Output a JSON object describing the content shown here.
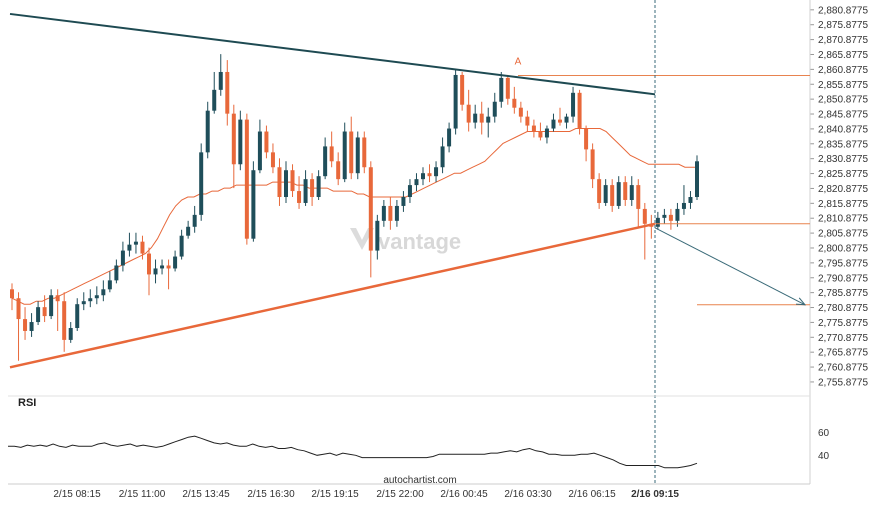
{
  "chart_data": {
    "type": "candlestick",
    "price_axis_ticks": [
      "2,880.8775",
      "2,875.8775",
      "2,870.8775",
      "2,865.8775",
      "2,860.8775",
      "2,855.8775",
      "2,850.8775",
      "2,845.8775",
      "2,840.8775",
      "2,835.8775",
      "2,830.8775",
      "2,825.8775",
      "2,820.8775",
      "2,815.8775",
      "2,810.8775",
      "2,805.8775",
      "2,800.8775",
      "2,795.8775",
      "2,790.8775",
      "2,785.8775",
      "2,780.8775",
      "2,775.8775",
      "2,770.8775",
      "2,765.8775",
      "2,760.8775",
      "2,755.8775"
    ],
    "ylim": [
      2752.5,
      2882.5
    ],
    "x_ticks": [
      "2/15 08:15",
      "2/15 11:00",
      "2/15 13:45",
      "2/15 16:30",
      "2/15 19:15",
      "2/15 22:00",
      "2/16 00:45",
      "2/16 03:30",
      "2/16 06:15",
      "2/16 09:15"
    ],
    "highlight_x_tick": "2/16 09:15",
    "pattern_label": "A",
    "rsi_label": "RSI",
    "rsi_ticks": [
      "60",
      "40"
    ],
    "watermark": "vantage",
    "footer": "autochartist.com",
    "colors": {
      "up": "#1f4e5a",
      "down": "#e8683a",
      "resistance": "#1e4a52",
      "support": "#e8683a",
      "level": "#e8834f",
      "forecast": "#3a6a78",
      "rsi": "#222222"
    },
    "resistance_line": {
      "from_price": 2879.5,
      "to_price": 2852.5
    },
    "support_line": {
      "from_price": 2760.8,
      "to_price": 2809.0
    },
    "horizontal_levels": [
      2858.8,
      2809.0,
      2781.8
    ],
    "forecast_target": 2781.8,
    "moving_average": [
      2784,
      2783,
      2782,
      2782,
      2783,
      2783,
      2784,
      2784,
      2785,
      2786,
      2787,
      2788,
      2789,
      2790,
      2791,
      2792,
      2793,
      2794,
      2795,
      2796,
      2797,
      2798,
      2799,
      2801,
      2804,
      2808,
      2812,
      2815,
      2817,
      2818,
      2818,
      2819,
      2819,
      2820,
      2820,
      2821,
      2821,
      2822,
      2822,
      2822,
      2822,
      2822,
      2822,
      2823,
      2823,
      2823,
      2823,
      2822,
      2822,
      2821,
      2821,
      2821,
      2821,
      2820,
      2820,
      2820,
      2820,
      2819,
      2819,
      2818,
      2818,
      2818,
      2818,
      2818,
      2818,
      2818,
      2819,
      2820,
      2821,
      2822,
      2823,
      2824,
      2825,
      2826,
      2826,
      2827,
      2828,
      2829,
      2830,
      2832,
      2834,
      2836,
      2837,
      2838,
      2839,
      2840,
      2840,
      2840,
      2840,
      2840,
      2840,
      2840,
      2840,
      2841,
      2841,
      2841,
      2841,
      2841,
      2840,
      2838,
      2836,
      2834,
      2832,
      2831,
      2830,
      2829,
      2829,
      2829,
      2829,
      2829,
      2829,
      2828,
      2828,
      2828
    ],
    "rsi_values": [
      48,
      48,
      47,
      49,
      48,
      49,
      48,
      50,
      48,
      47,
      49,
      48,
      48,
      48,
      50,
      51,
      49,
      48,
      49,
      50,
      48,
      49,
      48,
      47,
      48,
      50,
      52,
      54,
      56,
      57,
      55,
      53,
      51,
      50,
      51,
      49,
      48,
      48,
      50,
      48,
      47,
      48,
      46,
      46,
      47,
      45,
      44,
      42,
      40,
      41,
      42,
      40,
      42,
      41,
      40,
      38,
      38,
      38,
      38,
      38,
      38,
      38,
      38,
      38,
      38,
      38,
      39,
      41,
      41,
      41,
      41,
      41,
      41,
      41,
      41,
      42,
      42,
      43,
      44,
      43,
      45,
      46,
      44,
      43,
      41,
      41,
      40,
      40,
      40,
      41,
      41,
      42,
      40,
      38,
      36,
      33,
      31,
      31,
      31,
      31,
      31,
      31,
      29,
      29,
      29,
      30,
      31,
      33
    ],
    "candles": [
      {
        "o": 2787.0,
        "h": 2789.0,
        "c": 2784.0,
        "l": 2780.0
      },
      {
        "o": 2784.0,
        "h": 2786.0,
        "c": 2777.0,
        "l": 2763.0
      },
      {
        "o": 2777.0,
        "h": 2781.0,
        "c": 2773.0,
        "l": 2770.0
      },
      {
        "o": 2773.0,
        "h": 2779.0,
        "c": 2776.0,
        "l": 2771.0
      },
      {
        "o": 2776.0,
        "h": 2783.0,
        "c": 2781.0,
        "l": 2775.0
      },
      {
        "o": 2781.0,
        "h": 2785.0,
        "c": 2778.0,
        "l": 2776.0
      },
      {
        "o": 2778.0,
        "h": 2787.0,
        "c": 2785.0,
        "l": 2777.0
      },
      {
        "o": 2785.0,
        "h": 2787.0,
        "c": 2783.0,
        "l": 2773.0
      },
      {
        "o": 2783.0,
        "h": 2786.0,
        "c": 2770.0,
        "l": 2766.0
      },
      {
        "o": 2770.0,
        "h": 2776.0,
        "c": 2774.0,
        "l": 2769.0
      },
      {
        "o": 2774.0,
        "h": 2784.0,
        "c": 2782.0,
        "l": 2773.0
      },
      {
        "o": 2782.0,
        "h": 2786.0,
        "c": 2783.0,
        "l": 2780.0
      },
      {
        "o": 2783.0,
        "h": 2787.0,
        "c": 2784.0,
        "l": 2781.0
      },
      {
        "o": 2784.0,
        "h": 2788.0,
        "c": 2785.0,
        "l": 2782.0
      },
      {
        "o": 2785.0,
        "h": 2790.0,
        "c": 2787.0,
        "l": 2783.0
      },
      {
        "o": 2787.0,
        "h": 2793.0,
        "c": 2790.0,
        "l": 2786.0
      },
      {
        "o": 2790.0,
        "h": 2797.0,
        "c": 2795.0,
        "l": 2789.0
      },
      {
        "o": 2795.0,
        "h": 2803.0,
        "c": 2800.0,
        "l": 2793.0
      },
      {
        "o": 2800.0,
        "h": 2806.0,
        "c": 2802.0,
        "l": 2798.0
      },
      {
        "o": 2802.0,
        "h": 2806.0,
        "c": 2803.0,
        "l": 2799.0
      },
      {
        "o": 2803.0,
        "h": 2805.0,
        "c": 2799.0,
        "l": 2797.0
      },
      {
        "o": 2799.0,
        "h": 2801.0,
        "c": 2792.0,
        "l": 2785.0
      },
      {
        "o": 2792.0,
        "h": 2797.0,
        "c": 2794.0,
        "l": 2789.0
      },
      {
        "o": 2794.0,
        "h": 2797.0,
        "c": 2795.0,
        "l": 2792.0
      },
      {
        "o": 2795.0,
        "h": 2797.0,
        "c": 2794.0,
        "l": 2787.0
      },
      {
        "o": 2794.0,
        "h": 2800.0,
        "c": 2798.0,
        "l": 2793.0
      },
      {
        "o": 2798.0,
        "h": 2807.0,
        "c": 2805.0,
        "l": 2797.0
      },
      {
        "o": 2805.0,
        "h": 2810.0,
        "c": 2808.0,
        "l": 2804.0
      },
      {
        "o": 2808.0,
        "h": 2815.0,
        "c": 2812.0,
        "l": 2806.0
      },
      {
        "o": 2812.0,
        "h": 2836.0,
        "c": 2833.0,
        "l": 2810.0
      },
      {
        "o": 2833.0,
        "h": 2850.0,
        "c": 2847.0,
        "l": 2831.0
      },
      {
        "o": 2847.0,
        "h": 2860.0,
        "c": 2854.0,
        "l": 2846.0
      },
      {
        "o": 2854.0,
        "h": 2866.0,
        "c": 2860.0,
        "l": 2852.0
      },
      {
        "o": 2860.0,
        "h": 2864.0,
        "c": 2846.0,
        "l": 2842.0
      },
      {
        "o": 2846.0,
        "h": 2849.0,
        "c": 2829.0,
        "l": 2821.0
      },
      {
        "o": 2829.0,
        "h": 2847.0,
        "c": 2844.0,
        "l": 2827.0
      },
      {
        "o": 2844.0,
        "h": 2846.0,
        "c": 2804.0,
        "l": 2802.0
      },
      {
        "o": 2804.0,
        "h": 2830.0,
        "c": 2827.0,
        "l": 2803.0
      },
      {
        "o": 2827.0,
        "h": 2844.0,
        "c": 2840.0,
        "l": 2826.0
      },
      {
        "o": 2840.0,
        "h": 2842.0,
        "c": 2833.0,
        "l": 2831.0
      },
      {
        "o": 2833.0,
        "h": 2836.0,
        "c": 2828.0,
        "l": 2826.0
      },
      {
        "o": 2828.0,
        "h": 2831.0,
        "c": 2818.0,
        "l": 2815.0
      },
      {
        "o": 2818.0,
        "h": 2830.0,
        "c": 2827.0,
        "l": 2816.0
      },
      {
        "o": 2827.0,
        "h": 2829.0,
        "c": 2820.0,
        "l": 2818.0
      },
      {
        "o": 2820.0,
        "h": 2825.0,
        "c": 2816.0,
        "l": 2814.0
      },
      {
        "o": 2816.0,
        "h": 2827.0,
        "c": 2824.0,
        "l": 2815.0
      },
      {
        "o": 2824.0,
        "h": 2826.0,
        "c": 2818.0,
        "l": 2815.0
      },
      {
        "o": 2818.0,
        "h": 2827.0,
        "c": 2825.0,
        "l": 2817.0
      },
      {
        "o": 2825.0,
        "h": 2838.0,
        "c": 2835.0,
        "l": 2824.0
      },
      {
        "o": 2835.0,
        "h": 2840.0,
        "c": 2830.0,
        "l": 2828.0
      },
      {
        "o": 2830.0,
        "h": 2833.0,
        "c": 2824.0,
        "l": 2822.0
      },
      {
        "o": 2824.0,
        "h": 2843.0,
        "c": 2840.0,
        "l": 2823.0
      },
      {
        "o": 2840.0,
        "h": 2845.0,
        "c": 2826.0,
        "l": 2824.0
      },
      {
        "o": 2826.0,
        "h": 2840.0,
        "c": 2838.0,
        "l": 2824.0
      },
      {
        "o": 2838.0,
        "h": 2840.0,
        "c": 2828.0,
        "l": 2826.0
      },
      {
        "o": 2828.0,
        "h": 2830.0,
        "c": 2800.0,
        "l": 2791.0
      },
      {
        "o": 2800.0,
        "h": 2812.0,
        "c": 2810.0,
        "l": 2797.0
      },
      {
        "o": 2810.0,
        "h": 2817.0,
        "c": 2815.0,
        "l": 2808.0
      },
      {
        "o": 2815.0,
        "h": 2818.0,
        "c": 2810.0,
        "l": 2807.0
      },
      {
        "o": 2810.0,
        "h": 2817.0,
        "c": 2815.0,
        "l": 2808.0
      },
      {
        "o": 2815.0,
        "h": 2820.0,
        "c": 2818.0,
        "l": 2813.0
      },
      {
        "o": 2818.0,
        "h": 2824.0,
        "c": 2822.0,
        "l": 2816.0
      },
      {
        "o": 2822.0,
        "h": 2826.0,
        "c": 2824.0,
        "l": 2820.0
      },
      {
        "o": 2824.0,
        "h": 2828.0,
        "c": 2826.0,
        "l": 2822.0
      },
      {
        "o": 2826.0,
        "h": 2829.0,
        "c": 2825.0,
        "l": 2823.0
      },
      {
        "o": 2825.0,
        "h": 2830.0,
        "c": 2828.0,
        "l": 2823.0
      },
      {
        "o": 2828.0,
        "h": 2838.0,
        "c": 2835.0,
        "l": 2826.0
      },
      {
        "o": 2835.0,
        "h": 2843.0,
        "c": 2841.0,
        "l": 2833.0
      },
      {
        "o": 2841.0,
        "h": 2861.0,
        "c": 2859.0,
        "l": 2839.0
      },
      {
        "o": 2859.0,
        "h": 2860.0,
        "c": 2849.0,
        "l": 2847.0
      },
      {
        "o": 2849.0,
        "h": 2854.0,
        "c": 2843.0,
        "l": 2840.0
      },
      {
        "o": 2843.0,
        "h": 2849.0,
        "c": 2846.0,
        "l": 2841.0
      },
      {
        "o": 2846.0,
        "h": 2850.0,
        "c": 2843.0,
        "l": 2839.0
      },
      {
        "o": 2843.0,
        "h": 2848.0,
        "c": 2845.0,
        "l": 2838.0
      },
      {
        "o": 2845.0,
        "h": 2853.0,
        "c": 2850.0,
        "l": 2843.0
      },
      {
        "o": 2850.0,
        "h": 2860.0,
        "c": 2858.0,
        "l": 2848.0
      },
      {
        "o": 2858.0,
        "h": 2859.0,
        "c": 2851.0,
        "l": 2849.0
      },
      {
        "o": 2851.0,
        "h": 2855.0,
        "c": 2848.0,
        "l": 2846.0
      },
      {
        "o": 2848.0,
        "h": 2850.0,
        "c": 2845.0,
        "l": 2843.0
      },
      {
        "o": 2845.0,
        "h": 2847.0,
        "c": 2842.0,
        "l": 2840.0
      },
      {
        "o": 2842.0,
        "h": 2844.0,
        "c": 2840.0,
        "l": 2838.0
      },
      {
        "o": 2840.0,
        "h": 2843.0,
        "c": 2838.0,
        "l": 2837.0
      },
      {
        "o": 2838.0,
        "h": 2842.0,
        "c": 2841.0,
        "l": 2836.0
      },
      {
        "o": 2841.0,
        "h": 2846.0,
        "c": 2844.0,
        "l": 2840.0
      },
      {
        "o": 2844.0,
        "h": 2848.0,
        "c": 2843.0,
        "l": 2842.0
      },
      {
        "o": 2843.0,
        "h": 2846.0,
        "c": 2845.0,
        "l": 2841.0
      },
      {
        "o": 2845.0,
        "h": 2855.0,
        "c": 2853.0,
        "l": 2843.0
      },
      {
        "o": 2853.0,
        "h": 2854.0,
        "c": 2841.0,
        "l": 2839.0
      },
      {
        "o": 2841.0,
        "h": 2842.0,
        "c": 2834.0,
        "l": 2830.0
      },
      {
        "o": 2834.0,
        "h": 2836.0,
        "c": 2824.0,
        "l": 2821.0
      },
      {
        "o": 2824.0,
        "h": 2826.0,
        "c": 2816.0,
        "l": 2814.0
      },
      {
        "o": 2816.0,
        "h": 2824.0,
        "c": 2822.0,
        "l": 2815.0
      },
      {
        "o": 2822.0,
        "h": 2824.0,
        "c": 2815.0,
        "l": 2813.0
      },
      {
        "o": 2815.0,
        "h": 2825.0,
        "c": 2823.0,
        "l": 2814.0
      },
      {
        "o": 2823.0,
        "h": 2825.0,
        "c": 2817.0,
        "l": 2815.0
      },
      {
        "o": 2817.0,
        "h": 2825.0,
        "c": 2822.0,
        "l": 2815.0
      },
      {
        "o": 2822.0,
        "h": 2824.0,
        "c": 2814.0,
        "l": 2808.0
      },
      {
        "o": 2814.0,
        "h": 2816.0,
        "c": 2809.0,
        "l": 2797.0
      },
      {
        "o": 2809.0,
        "h": 2812.0,
        "c": 2808.0,
        "l": 2804.0
      },
      {
        "o": 2808.0,
        "h": 2813.0,
        "c": 2811.0,
        "l": 2807.0
      },
      {
        "o": 2811.0,
        "h": 2814.0,
        "c": 2812.0,
        "l": 2809.0
      },
      {
        "o": 2812.0,
        "h": 2814.0,
        "c": 2810.0,
        "l": 2807.0
      },
      {
        "o": 2810.0,
        "h": 2816.0,
        "c": 2814.0,
        "l": 2808.0
      },
      {
        "o": 2814.0,
        "h": 2822.0,
        "c": 2816.0,
        "l": 2812.0
      },
      {
        "o": 2816.0,
        "h": 2820.0,
        "c": 2818.0,
        "l": 2814.0
      },
      {
        "o": 2818.0,
        "h": 2832.0,
        "c": 2830.0,
        "l": 2817.0
      }
    ]
  }
}
